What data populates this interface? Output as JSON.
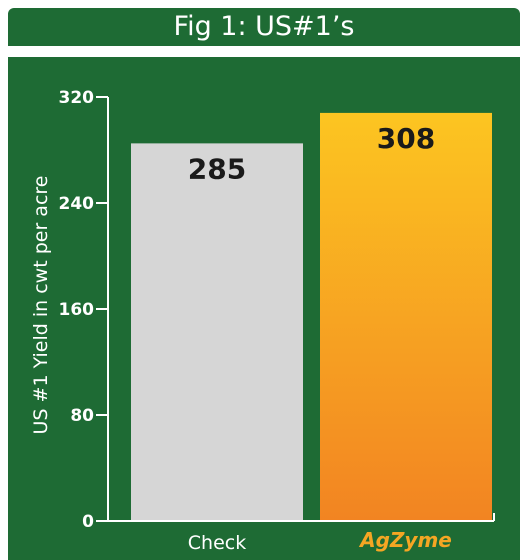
{
  "title": "Fig 1: US#1’s",
  "colors": {
    "panel": "#1e6b34",
    "check_bar": "#d6d6d6",
    "agzyme_top": "#fcc521",
    "agzyme_bottom": "#f28422",
    "brand": "#f5a623"
  },
  "chart_data": {
    "type": "bar",
    "categories": [
      "Check",
      "AgZyme"
    ],
    "values": [
      285,
      308
    ],
    "data_labels": [
      "285",
      "308"
    ],
    "ylabel": "US #1 Yield in cwt per acre",
    "ylim": [
      0,
      320
    ],
    "yticks": [
      0,
      80,
      160,
      240,
      320
    ],
    "ytick_labels": [
      "0",
      "80",
      "160",
      "240",
      "320"
    ],
    "grid": false
  }
}
